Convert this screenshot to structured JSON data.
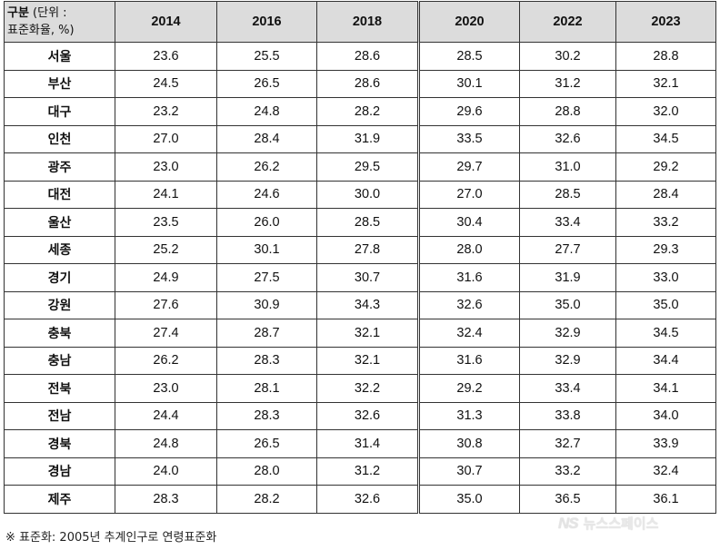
{
  "table": {
    "corner_line1": "구분",
    "corner_line1_rest": " (단위 :",
    "corner_line2": "표준화율, %)",
    "years": [
      "2014",
      "2016",
      "2018",
      "2020",
      "2022",
      "2023"
    ],
    "rows": [
      {
        "region": "서울",
        "values": [
          "23.6",
          "25.5",
          "28.6",
          "28.5",
          "30.2",
          "28.8"
        ]
      },
      {
        "region": "부산",
        "values": [
          "24.5",
          "26.5",
          "28.6",
          "30.1",
          "31.2",
          "32.1"
        ]
      },
      {
        "region": "대구",
        "values": [
          "23.2",
          "24.8",
          "28.2",
          "29.6",
          "28.8",
          "32.0"
        ]
      },
      {
        "region": "인천",
        "values": [
          "27.0",
          "28.4",
          "31.9",
          "33.5",
          "32.6",
          "34.5"
        ]
      },
      {
        "region": "광주",
        "values": [
          "23.0",
          "26.2",
          "29.5",
          "29.7",
          "31.0",
          "29.2"
        ]
      },
      {
        "region": "대전",
        "values": [
          "24.1",
          "24.6",
          "30.0",
          "27.0",
          "28.5",
          "28.4"
        ]
      },
      {
        "region": "울산",
        "values": [
          "23.5",
          "26.0",
          "28.5",
          "30.4",
          "33.4",
          "33.2"
        ]
      },
      {
        "region": "세종",
        "values": [
          "25.2",
          "30.1",
          "27.8",
          "28.0",
          "27.7",
          "29.3"
        ]
      },
      {
        "region": "경기",
        "values": [
          "24.9",
          "27.5",
          "30.7",
          "31.6",
          "31.9",
          "33.0"
        ]
      },
      {
        "region": "강원",
        "values": [
          "27.6",
          "30.9",
          "34.3",
          "32.6",
          "35.0",
          "35.0"
        ]
      },
      {
        "region": "충북",
        "values": [
          "27.4",
          "28.7",
          "32.1",
          "32.4",
          "32.9",
          "34.5"
        ]
      },
      {
        "region": "충남",
        "values": [
          "26.2",
          "28.3",
          "32.1",
          "31.6",
          "32.9",
          "34.4"
        ]
      },
      {
        "region": "전북",
        "values": [
          "23.0",
          "28.1",
          "32.2",
          "29.2",
          "33.4",
          "34.1"
        ]
      },
      {
        "region": "전남",
        "values": [
          "24.4",
          "28.3",
          "32.6",
          "31.3",
          "33.8",
          "34.0"
        ]
      },
      {
        "region": "경북",
        "values": [
          "24.8",
          "26.5",
          "31.4",
          "30.8",
          "32.7",
          "33.9"
        ]
      },
      {
        "region": "경남",
        "values": [
          "24.0",
          "28.0",
          "31.2",
          "30.7",
          "33.2",
          "32.4"
        ]
      },
      {
        "region": "제주",
        "values": [
          "28.3",
          "28.2",
          "32.6",
          "35.0",
          "36.5",
          "36.1"
        ]
      }
    ]
  },
  "footnote": "※ 표준화: 2005년 추계인구로 연령표준화",
  "watermark": {
    "logo": "NS",
    "text": "뉴스스페이스"
  },
  "colors": {
    "header_bg": "#dcdcdc",
    "border": "#333333"
  }
}
